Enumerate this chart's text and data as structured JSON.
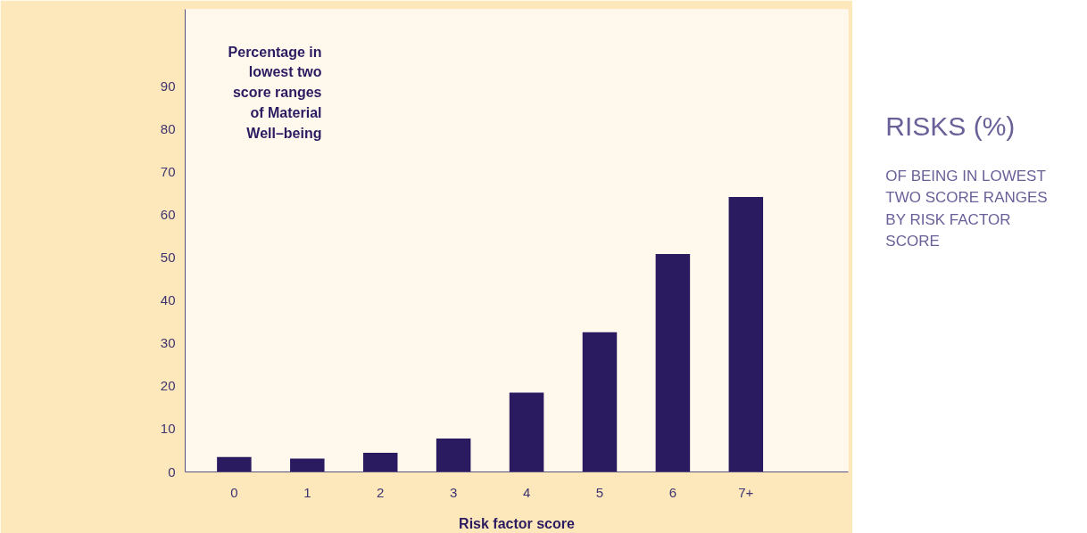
{
  "chart_data": {
    "type": "bar",
    "title": "RISKS (%)",
    "subtitle": "OF BEING IN LOWEST TWO SCORE RANGES BY RISK FACTOR SCORE",
    "xlabel": "Risk factor score",
    "ylabel": "Percentage in lowest two score ranges of Material Well–being",
    "categories": [
      "0",
      "1",
      "2",
      "3",
      "4",
      "5",
      "6",
      "7+"
    ],
    "values": [
      3.5,
      3.1,
      4.5,
      7.8,
      18.5,
      32.6,
      50.9,
      64.2
    ],
    "color": "#2a1a60",
    "ylim": [
      0,
      108
    ],
    "yticks": [
      0,
      10,
      20,
      30,
      40,
      50,
      60,
      70,
      80,
      90
    ]
  }
}
